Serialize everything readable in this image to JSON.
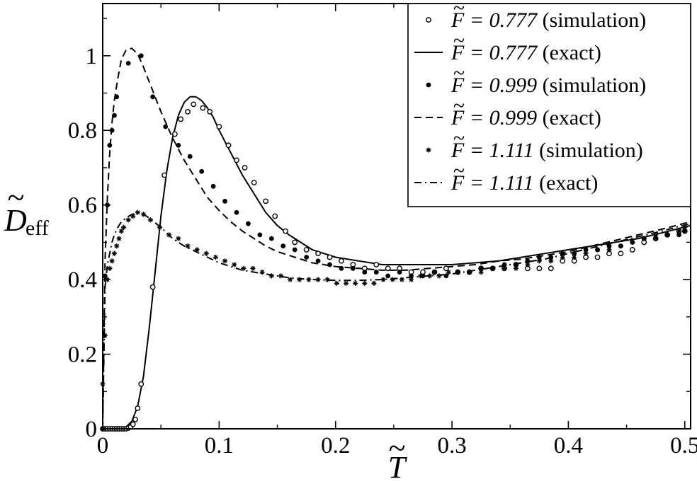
{
  "chart_data": {
    "type": "scatter",
    "title": "",
    "xlabel": "T",
    "xlabel_accent": "~",
    "ylabel": "D",
    "ylabel_accent": "~",
    "ylabel_subscript": "eff",
    "xlim": [
      0,
      0.505
    ],
    "ylim": [
      0,
      1.14
    ],
    "x_ticks": [
      0,
      0.1,
      0.2,
      0.3,
      0.4,
      0.5
    ],
    "x_tick_labels": [
      "0",
      "0.1",
      "0.2",
      "0.3",
      "0.4",
      "0.5"
    ],
    "y_ticks": [
      0,
      0.2,
      0.4,
      0.6,
      0.8,
      1.0
    ],
    "y_tick_labels": [
      "0",
      "0.2",
      "0.4",
      "0.6",
      "0.8",
      "1"
    ],
    "grid": false,
    "legend_position": "top-right",
    "legend": [
      {
        "symbol": "F",
        "eq": " = ",
        "value": "0.777",
        "note": " (simulation)",
        "marker": "open-circle"
      },
      {
        "symbol": "F",
        "eq": " = ",
        "value": "0.777",
        "note": " (exact)",
        "marker": "solid-line"
      },
      {
        "symbol": "F",
        "eq": " = ",
        "value": "0.999",
        "note": " (simulation)",
        "marker": "filled-circle"
      },
      {
        "symbol": "F",
        "eq": " = ",
        "value": "0.999",
        "note": " (exact)",
        "marker": "dashed-line"
      },
      {
        "symbol": "F",
        "eq": " = ",
        "value": "1.111",
        "note": " (simulation)",
        "marker": "star"
      },
      {
        "symbol": "F",
        "eq": " = ",
        "value": "1.111",
        "note": " (exact)",
        "marker": "dash-dot-line"
      }
    ],
    "series": [
      {
        "name": "F = 0.777 (simulation)",
        "kind": "points",
        "marker": "open-circle",
        "x": [
          0.0,
          0.002,
          0.004,
          0.006,
          0.008,
          0.01,
          0.012,
          0.014,
          0.016,
          0.018,
          0.02,
          0.022,
          0.024,
          0.026,
          0.028,
          0.03,
          0.033,
          0.043,
          0.053,
          0.062,
          0.067,
          0.073,
          0.078,
          0.086,
          0.092,
          0.1,
          0.108,
          0.115,
          0.122,
          0.13,
          0.14,
          0.148,
          0.157,
          0.165,
          0.175,
          0.185,
          0.195,
          0.205,
          0.215,
          0.225,
          0.235,
          0.245,
          0.255,
          0.265,
          0.275,
          0.285,
          0.295,
          0.305,
          0.315,
          0.325,
          0.335,
          0.345,
          0.355,
          0.365,
          0.375,
          0.385,
          0.395,
          0.405,
          0.415,
          0.425,
          0.435,
          0.445,
          0.455,
          0.465,
          0.475,
          0.485,
          0.495,
          0.5
        ],
        "y": [
          0.0,
          0.0,
          0.0,
          0.0,
          0.0,
          0.0,
          0.0,
          0.0,
          0.0,
          0.0,
          0.0,
          0.002,
          0.005,
          0.012,
          0.025,
          0.055,
          0.12,
          0.38,
          0.68,
          0.79,
          0.83,
          0.85,
          0.87,
          0.86,
          0.85,
          0.81,
          0.76,
          0.72,
          0.7,
          0.66,
          0.61,
          0.57,
          0.53,
          0.5,
          0.48,
          0.47,
          0.46,
          0.45,
          0.44,
          0.43,
          0.44,
          0.43,
          0.43,
          0.42,
          0.42,
          0.42,
          0.43,
          0.42,
          0.42,
          0.43,
          0.43,
          0.43,
          0.44,
          0.43,
          0.43,
          0.43,
          0.45,
          0.45,
          0.46,
          0.46,
          0.47,
          0.47,
          0.48,
          0.5,
          0.51,
          0.52,
          0.53,
          0.53
        ]
      },
      {
        "name": "F = 0.777 (exact)",
        "kind": "line",
        "style": "solid",
        "x": [
          0.0,
          0.01,
          0.015,
          0.02,
          0.025,
          0.03,
          0.035,
          0.04,
          0.045,
          0.05,
          0.055,
          0.06,
          0.065,
          0.07,
          0.075,
          0.08,
          0.085,
          0.09,
          0.095,
          0.1,
          0.11,
          0.12,
          0.13,
          0.14,
          0.15,
          0.16,
          0.17,
          0.18,
          0.2,
          0.22,
          0.24,
          0.26,
          0.28,
          0.3,
          0.32,
          0.34,
          0.36,
          0.38,
          0.4,
          0.42,
          0.44,
          0.46,
          0.48,
          0.505
        ],
        "y": [
          0.0,
          0.0,
          0.0,
          0.005,
          0.02,
          0.06,
          0.14,
          0.27,
          0.42,
          0.57,
          0.69,
          0.78,
          0.84,
          0.875,
          0.89,
          0.89,
          0.88,
          0.86,
          0.835,
          0.8,
          0.74,
          0.68,
          0.63,
          0.58,
          0.545,
          0.52,
          0.5,
          0.48,
          0.46,
          0.45,
          0.44,
          0.44,
          0.44,
          0.44,
          0.445,
          0.45,
          0.46,
          0.47,
          0.48,
          0.49,
          0.5,
          0.51,
          0.525,
          0.545
        ]
      },
      {
        "name": "F = 0.999 (simulation)",
        "kind": "points",
        "marker": "filled-circle",
        "x": [
          0.0,
          0.002,
          0.004,
          0.006,
          0.008,
          0.01,
          0.012,
          0.022,
          0.033,
          0.043,
          0.054,
          0.065,
          0.075,
          0.085,
          0.095,
          0.105,
          0.115,
          0.125,
          0.135,
          0.145,
          0.155,
          0.165,
          0.175,
          0.185,
          0.195,
          0.205,
          0.215,
          0.225,
          0.235,
          0.245,
          0.255,
          0.265,
          0.275,
          0.285,
          0.295,
          0.305,
          0.315,
          0.325,
          0.335,
          0.345,
          0.355,
          0.365,
          0.375,
          0.385,
          0.395,
          0.405,
          0.415,
          0.425,
          0.435,
          0.445,
          0.455,
          0.465,
          0.475,
          0.485,
          0.495,
          0.5
        ],
        "y": [
          0.0,
          0.41,
          0.6,
          0.76,
          0.8,
          0.84,
          0.89,
          0.98,
          1.0,
          0.89,
          0.81,
          0.76,
          0.73,
          0.69,
          0.65,
          0.61,
          0.58,
          0.55,
          0.52,
          0.51,
          0.49,
          0.48,
          0.46,
          0.45,
          0.44,
          0.43,
          0.43,
          0.42,
          0.42,
          0.41,
          0.42,
          0.41,
          0.41,
          0.42,
          0.41,
          0.42,
          0.42,
          0.43,
          0.43,
          0.44,
          0.44,
          0.45,
          0.46,
          0.46,
          0.47,
          0.47,
          0.48,
          0.48,
          0.49,
          0.49,
          0.5,
          0.51,
          0.51,
          0.52,
          0.52,
          0.53
        ]
      },
      {
        "name": "F = 0.999 (exact)",
        "kind": "line",
        "style": "dashed",
        "x": [
          0.0,
          0.002,
          0.004,
          0.006,
          0.008,
          0.01,
          0.013,
          0.016,
          0.02,
          0.025,
          0.03,
          0.035,
          0.04,
          0.05,
          0.06,
          0.07,
          0.08,
          0.09,
          0.1,
          0.11,
          0.12,
          0.13,
          0.14,
          0.15,
          0.16,
          0.18,
          0.2,
          0.22,
          0.24,
          0.26,
          0.28,
          0.3,
          0.32,
          0.34,
          0.36,
          0.38,
          0.4,
          0.42,
          0.44,
          0.46,
          0.48,
          0.505
        ],
        "y": [
          0.0,
          0.45,
          0.62,
          0.74,
          0.82,
          0.88,
          0.94,
          0.99,
          1.015,
          1.02,
          1.005,
          0.97,
          0.93,
          0.85,
          0.78,
          0.72,
          0.67,
          0.62,
          0.585,
          0.555,
          0.53,
          0.51,
          0.49,
          0.475,
          0.465,
          0.445,
          0.435,
          0.43,
          0.425,
          0.425,
          0.43,
          0.435,
          0.44,
          0.45,
          0.455,
          0.465,
          0.475,
          0.49,
          0.505,
          0.52,
          0.535,
          0.555
        ]
      },
      {
        "name": "F = 1.111 (simulation)",
        "kind": "points",
        "marker": "star",
        "x": [
          0.0,
          0.002,
          0.004,
          0.006,
          0.008,
          0.01,
          0.012,
          0.014,
          0.016,
          0.018,
          0.022,
          0.026,
          0.03,
          0.035,
          0.041,
          0.049,
          0.057,
          0.065,
          0.073,
          0.081,
          0.089,
          0.097,
          0.105,
          0.113,
          0.121,
          0.129,
          0.137,
          0.145,
          0.153,
          0.161,
          0.169,
          0.177,
          0.185,
          0.193,
          0.201,
          0.209,
          0.217,
          0.225,
          0.233,
          0.241,
          0.249,
          0.257,
          0.265,
          0.273,
          0.281,
          0.289,
          0.297,
          0.305,
          0.315,
          0.325,
          0.335,
          0.345,
          0.355,
          0.365,
          0.375,
          0.385,
          0.395,
          0.405,
          0.415,
          0.425,
          0.435,
          0.445,
          0.455,
          0.465,
          0.475,
          0.485,
          0.495,
          0.5
        ],
        "y": [
          0.12,
          0.25,
          0.4,
          0.43,
          0.45,
          0.47,
          0.49,
          0.51,
          0.53,
          0.54,
          0.56,
          0.57,
          0.58,
          0.575,
          0.56,
          0.54,
          0.52,
          0.51,
          0.49,
          0.48,
          0.47,
          0.46,
          0.45,
          0.44,
          0.43,
          0.43,
          0.42,
          0.41,
          0.41,
          0.4,
          0.4,
          0.4,
          0.4,
          0.4,
          0.39,
          0.39,
          0.39,
          0.39,
          0.39,
          0.4,
          0.4,
          0.4,
          0.4,
          0.41,
          0.41,
          0.41,
          0.42,
          0.42,
          0.42,
          0.42,
          0.43,
          0.43,
          0.43,
          0.44,
          0.45,
          0.45,
          0.46,
          0.46,
          0.47,
          0.48,
          0.48,
          0.49,
          0.5,
          0.51,
          0.52,
          0.52,
          0.53,
          0.54
        ]
      },
      {
        "name": "F = 1.111 (exact)",
        "kind": "line",
        "style": "dash-dot",
        "x": [
          0.0,
          0.002,
          0.004,
          0.006,
          0.008,
          0.01,
          0.013,
          0.016,
          0.02,
          0.025,
          0.03,
          0.035,
          0.04,
          0.05,
          0.06,
          0.07,
          0.08,
          0.09,
          0.1,
          0.11,
          0.12,
          0.13,
          0.14,
          0.15,
          0.16,
          0.18,
          0.2,
          0.22,
          0.24,
          0.26,
          0.28,
          0.3,
          0.32,
          0.34,
          0.36,
          0.38,
          0.4,
          0.42,
          0.44,
          0.46,
          0.48,
          0.505
        ],
        "y": [
          0.0,
          0.38,
          0.44,
          0.47,
          0.5,
          0.52,
          0.54,
          0.555,
          0.565,
          0.575,
          0.578,
          0.575,
          0.565,
          0.54,
          0.51,
          0.49,
          0.475,
          0.46,
          0.445,
          0.435,
          0.425,
          0.42,
          0.415,
          0.41,
          0.405,
          0.4,
          0.398,
          0.398,
          0.4,
          0.405,
          0.41,
          0.415,
          0.425,
          0.435,
          0.445,
          0.455,
          0.47,
          0.485,
          0.5,
          0.515,
          0.53,
          0.55
        ]
      }
    ]
  }
}
